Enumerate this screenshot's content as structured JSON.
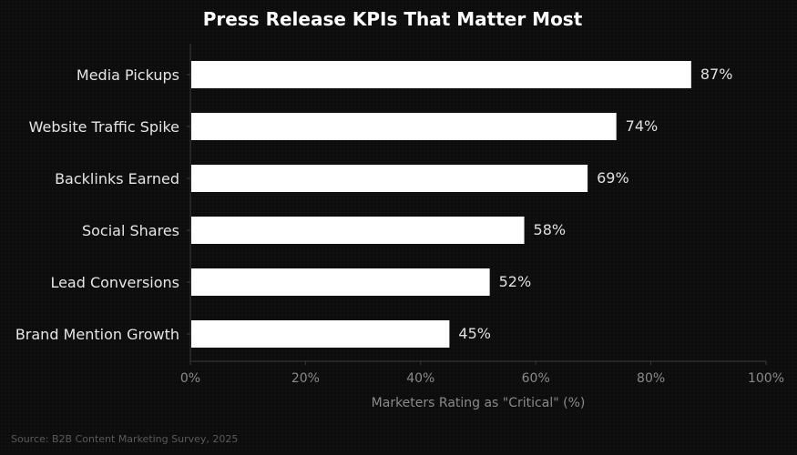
{
  "chart_data": {
    "type": "bar",
    "orientation": "horizontal",
    "title": "Press Release KPIs That Matter Most",
    "categories": [
      "Media Pickups",
      "Website Traffic Spike",
      "Backlinks Earned",
      "Social Shares",
      "Lead Conversions",
      "Brand Mention Growth"
    ],
    "values": [
      87,
      74,
      69,
      58,
      52,
      45
    ],
    "value_labels": [
      "87%",
      "74%",
      "69%",
      "58%",
      "52%",
      "45%"
    ],
    "xlabel": "Marketers Rating as \"Critical\" (%)",
    "ylabel": "",
    "xlim": [
      0,
      100
    ],
    "xticks": [
      0,
      20,
      40,
      60,
      80,
      100
    ],
    "xtick_labels": [
      "0%",
      "20%",
      "40%",
      "60%",
      "80%",
      "100%"
    ],
    "grid": false,
    "bar_color": "#ffffff",
    "background_color": "#0d0d0d"
  },
  "source": "Source: B2B Content Marketing Survey, 2025"
}
